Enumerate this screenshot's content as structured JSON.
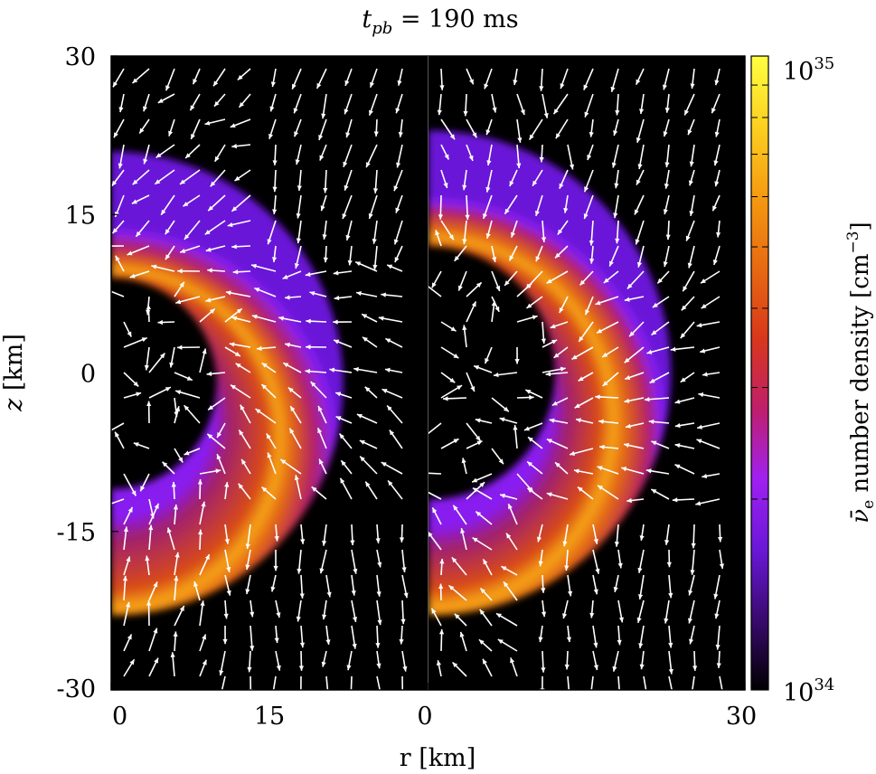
{
  "chart_data": {
    "type": "heatmap",
    "title": "t_pb = 190 ms",
    "title_main": "t",
    "title_sub": "pb",
    "title_rest": " = 190 ms",
    "xlabel": "r [km]",
    "ylabel": "z [km]",
    "ylabel_var": "z",
    "ylabel_unit": " [km]",
    "panels": [
      {
        "name": "left",
        "xlim": [
          0,
          30
        ],
        "ylim": [
          -30,
          30
        ],
        "x_ticks": [
          "0",
          "15"
        ]
      },
      {
        "name": "right",
        "xlim": [
          0,
          30
        ],
        "ylim": [
          -30,
          30
        ],
        "x_ticks": [
          "0",
          "30"
        ]
      }
    ],
    "y_ticks": [
      "30",
      "15",
      "0",
      "-15",
      "-30"
    ],
    "colorbar": {
      "label": "ν̄e number density [cm−3]",
      "label_symbol": "ν̄",
      "label_symbol_sub": "e",
      "label_text": " number density [cm",
      "label_exp": "−3",
      "label_close": "]",
      "scale": "log",
      "range": [
        1e+34,
        1e+35
      ],
      "max_base": "10",
      "max_exp": "35",
      "min_base": "10",
      "min_exp": "34",
      "colormap": [
        "#000000",
        "#3a0a6e",
        "#6a18d8",
        "#a020f0",
        "#c01f6a",
        "#d8381a",
        "#e86a12",
        "#f59a10",
        "#fcd020",
        "#ffff40"
      ]
    },
    "shells": [
      {
        "panel": "left",
        "r_inner": 10,
        "r_outer": 22,
        "z_center": -1,
        "peak_z": -9
      },
      {
        "panel": "right",
        "r_inner": 12,
        "r_outer": 23,
        "z_center": 0,
        "peak_z": -7
      }
    ],
    "vector_field": "velocity arrows (white)"
  }
}
